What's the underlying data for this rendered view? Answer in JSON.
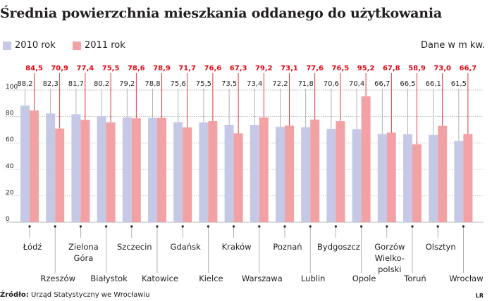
{
  "title": "Średnia powierzchnia mieszkania oddanego do użytkowania",
  "legend": [
    {
      "label": "2010 rok",
      "color": "#c6c9e6"
    },
    {
      "label": "2011 rok",
      "color": "#f2a1a4"
    }
  ],
  "unit_note": "Dane w m kw.",
  "source_label": "Źródło:",
  "source_text": "Urząd Statystyczny we Wrocławiu",
  "logo": "LR",
  "chart_data": {
    "type": "bar",
    "categories": [
      [
        "Łódź"
      ],
      [
        "Rzeszów"
      ],
      [
        "Zielona",
        "Góra"
      ],
      [
        "Białystok"
      ],
      [
        "Szczecin"
      ],
      [
        "Katowice"
      ],
      [
        "Gdańsk"
      ],
      [
        "Kielce"
      ],
      [
        "Kraków"
      ],
      [
        "Warszawa"
      ],
      [
        "Poznań"
      ],
      [
        "Lublin"
      ],
      [
        "Bydgoszcz"
      ],
      [
        "Opole"
      ],
      [
        "Gorzów",
        "Wielko-",
        "polski"
      ],
      [
        "Toruń"
      ],
      [
        "Olsztyn"
      ],
      [
        "Wrocław"
      ]
    ],
    "series": [
      {
        "name": "2010 rok",
        "color": "#c6c9e6",
        "label_color": "#231f20",
        "values": [
          88.2,
          82.3,
          81.7,
          80.2,
          79.2,
          78.8,
          75.6,
          75.5,
          73.5,
          73.4,
          72.2,
          71.8,
          70.6,
          70.4,
          66.7,
          66.5,
          66.1,
          61.5
        ],
        "labels": [
          "88,2",
          "82,3",
          "81,7",
          "80,2",
          "79,2",
          "78,8",
          "75,6",
          "75,5",
          "73,5",
          "73,4",
          "72,2",
          "71,8",
          "70,6",
          "70,4",
          "66,7",
          "66,5",
          "66,1",
          "61,5"
        ]
      },
      {
        "name": "2011 rok",
        "color": "#f2a1a4",
        "label_color": "#e30613",
        "values": [
          84.5,
          70.9,
          77.4,
          75.5,
          78.6,
          78.9,
          71.7,
          76.6,
          67.3,
          79.2,
          73.1,
          77.6,
          76.5,
          95.2,
          67.8,
          58.9,
          73.0,
          66.7
        ],
        "labels": [
          "84,5",
          "70,9",
          "77,4",
          "75,5",
          "78,6",
          "78,9",
          "71,7",
          "76,6",
          "67,3",
          "79,2",
          "73,1",
          "77,6",
          "76,5",
          "95,2",
          "67,8",
          "58,9",
          "73,0",
          "66,7"
        ]
      }
    ],
    "yticks": [
      "0",
      "20",
      "40",
      "60",
      "80",
      "100"
    ],
    "ylim": [
      0,
      100
    ],
    "grid": true
  }
}
